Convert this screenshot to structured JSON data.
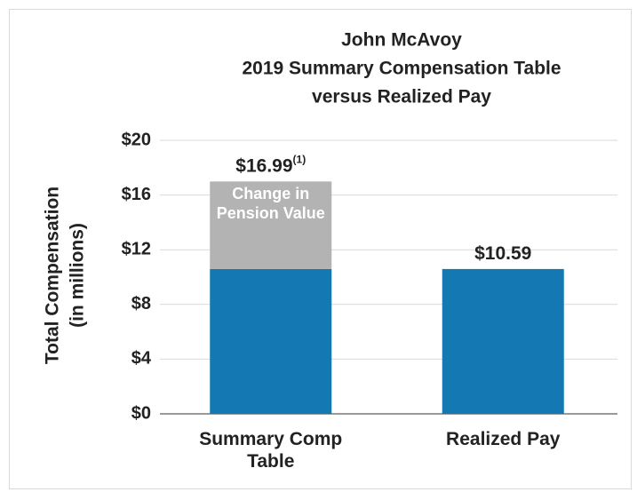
{
  "chart_data": {
    "type": "stacked_bar",
    "title": [
      "John McAvoy",
      "2019 Summary Compensation Table",
      "versus Realized Pay"
    ],
    "y_label": [
      "Total Compensation",
      "(in millions)"
    ],
    "categories": [
      "Summary Comp Table",
      "Realized Pay"
    ],
    "series": [
      {
        "color": "#1479b3",
        "values": [
          10.59,
          10.59
        ]
      },
      {
        "name": "Change in Pension Value",
        "color": "#b3b3b3",
        "values": [
          6.4,
          null
        ]
      }
    ],
    "totals": [
      16.99,
      10.59
    ],
    "total_labels": [
      "$16.99",
      "$10.59"
    ],
    "total_notes": [
      "(1)",
      null
    ],
    "ylim": [
      0,
      20
    ],
    "yticks": [
      {
        "value": 0,
        "label": "$0"
      },
      {
        "value": 4,
        "label": "$4"
      },
      {
        "value": 8,
        "label": "$8"
      },
      {
        "value": 12,
        "label": "$12"
      },
      {
        "value": 16,
        "label": "$16"
      },
      {
        "value": 20,
        "label": "$20"
      }
    ],
    "grid": true
  }
}
